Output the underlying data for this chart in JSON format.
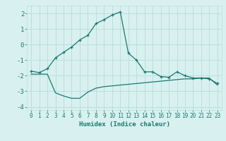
{
  "xlabel": "Humidex (Indice chaleur)",
  "line1_x": [
    0,
    1,
    2,
    3,
    4,
    5,
    6,
    7,
    8,
    9,
    10,
    11,
    12,
    13,
    14,
    15,
    16,
    17,
    18,
    19,
    20,
    21,
    22,
    23
  ],
  "line1_y": [
    -1.7,
    -1.8,
    -1.55,
    -0.85,
    -0.5,
    -0.15,
    0.3,
    0.6,
    1.35,
    1.6,
    1.9,
    2.1,
    -0.55,
    -1.0,
    -1.75,
    -1.75,
    -2.05,
    -2.1,
    -1.75,
    -2.0,
    -2.15,
    -2.15,
    -2.2,
    -2.5
  ],
  "line2_x": [
    0,
    1,
    2,
    3,
    4,
    5,
    6,
    7,
    8,
    9,
    10,
    11,
    12,
    13,
    14,
    15,
    16,
    17,
    18,
    19,
    20,
    21,
    22,
    23
  ],
  "line2_y": [
    -1.9,
    -1.9,
    -1.9,
    -3.1,
    -3.3,
    -3.45,
    -3.45,
    -3.05,
    -2.8,
    -2.7,
    -2.65,
    -2.6,
    -2.55,
    -2.5,
    -2.45,
    -2.4,
    -2.35,
    -2.3,
    -2.25,
    -2.2,
    -2.2,
    -2.15,
    -2.15,
    -2.6
  ],
  "line_color": "#1a7a6e",
  "bg_color": "#d8f0f0",
  "grid_color": "#bcdede",
  "ylim": [
    -4.2,
    2.5
  ],
  "xlim": [
    -0.5,
    23.5
  ],
  "yticks": [
    -4,
    -3,
    -2,
    -1,
    0,
    1,
    2
  ],
  "xticks": [
    0,
    1,
    2,
    3,
    4,
    5,
    6,
    7,
    8,
    9,
    10,
    11,
    12,
    13,
    14,
    15,
    16,
    17,
    18,
    19,
    20,
    21,
    22,
    23
  ],
  "xlabel_fontsize": 6.5,
  "tick_fontsize": 6.0
}
